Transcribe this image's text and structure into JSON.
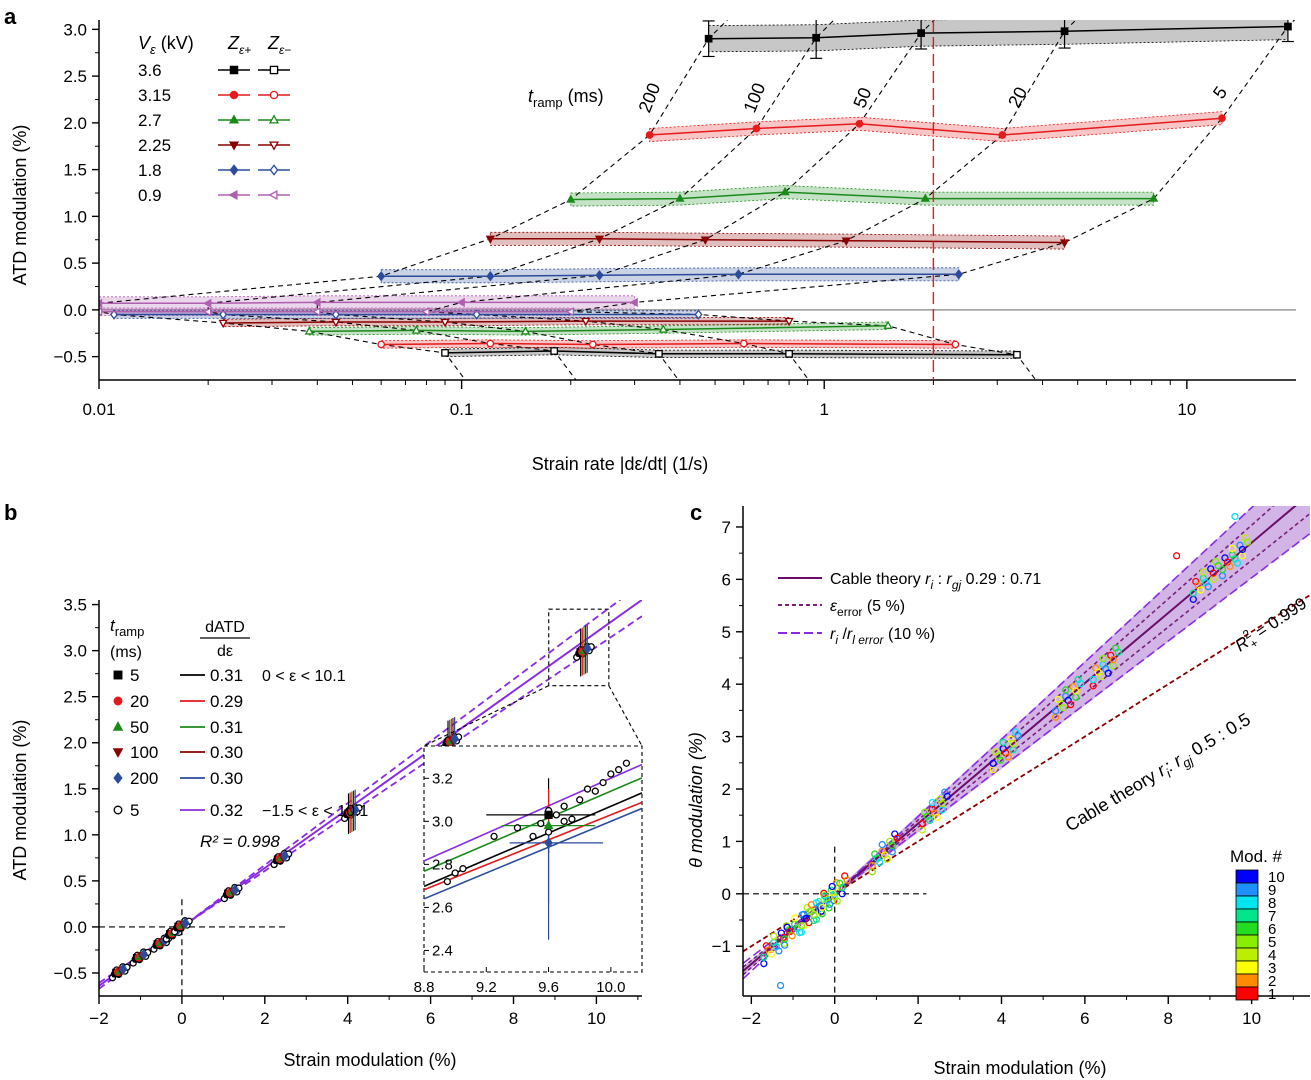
{
  "panels": {
    "a": "a",
    "b": "b",
    "c": "c"
  },
  "chart_data": [
    {
      "panel": "a",
      "type": "line",
      "xscale": "log",
      "xlim": [
        0.01,
        20
      ],
      "ylim": [
        -0.75,
        3.1
      ],
      "xlabel": "Strain rate |dε/dt| (1/s)",
      "ylabel": "ATD modulation (%)",
      "xticks": [
        "0.01",
        "0.1",
        "1",
        "10"
      ],
      "yticks": [
        "−0.5",
        "0.0",
        "0.5",
        "1.0",
        "1.5",
        "2.0",
        "2.5",
        "3.0"
      ],
      "legend": {
        "col_headers": [
          "V",
          "ε",
          " (kV)",
          "Z",
          "ε+",
          "Z",
          "ε−"
        ],
        "entries": [
          "3.6",
          "3.15",
          "2.7",
          "2.25",
          "1.8",
          "0.9"
        ]
      },
      "ramp_label": [
        "t",
        "ramp",
        " (ms)"
      ],
      "ramp_lines": [
        "200",
        "100",
        "50",
        "20",
        "5"
      ],
      "dashed_vline_x": 2.0,
      "series": [
        {
          "voltage": "3.6",
          "color": "#000000",
          "marker": "square",
          "pos_x": [
            0.48,
            0.95,
            1.85,
            4.6,
            19
          ],
          "pos_y": [
            2.9,
            2.91,
            2.96,
            2.98,
            3.03
          ],
          "pos_err": [
            0.19,
            0.22,
            0.17,
            0.18,
            0.16
          ],
          "neg_x": [
            0.09,
            0.18,
            0.35,
            0.8,
            3.4
          ],
          "neg_y": [
            -0.46,
            -0.44,
            -0.47,
            -0.47,
            -0.48
          ]
        },
        {
          "voltage": "3.15",
          "color": "#e41a1c",
          "marker": "circle",
          "pos_x": [
            0.33,
            0.65,
            1.25,
            3.1,
            12.5
          ],
          "pos_y": [
            1.87,
            1.94,
            1.99,
            1.87,
            2.05
          ],
          "neg_x": [
            0.06,
            0.12,
            0.23,
            0.6,
            2.3
          ],
          "neg_y": [
            -0.37,
            -0.36,
            -0.37,
            -0.36,
            -0.37
          ]
        },
        {
          "voltage": "2.7",
          "color": "#1a8a1a",
          "marker": "triangle-up",
          "pos_x": [
            0.2,
            0.4,
            0.78,
            1.9,
            8.1
          ],
          "pos_y": [
            1.18,
            1.19,
            1.26,
            1.19,
            1.19
          ],
          "neg_x": [
            0.038,
            0.075,
            0.15,
            0.36,
            1.5
          ],
          "neg_y": [
            -0.23,
            -0.22,
            -0.23,
            -0.21,
            -0.17
          ]
        },
        {
          "voltage": "2.25",
          "color": "#8b0000",
          "marker": "triangle-down",
          "pos_x": [
            0.12,
            0.24,
            0.47,
            1.15,
            4.6
          ],
          "pos_y": [
            0.76,
            0.76,
            0.75,
            0.74,
            0.72
          ],
          "neg_x": [
            0.022,
            0.045,
            0.09,
            0.22,
            0.8
          ],
          "neg_y": [
            -0.14,
            -0.13,
            -0.13,
            -0.12,
            -0.12
          ]
        },
        {
          "voltage": "1.8",
          "color": "#2b4c9b",
          "marker": "diamond",
          "pos_x": [
            0.06,
            0.12,
            0.24,
            0.58,
            2.35
          ],
          "pos_y": [
            0.36,
            0.36,
            0.37,
            0.38,
            0.38
          ],
          "neg_x": [
            0.011,
            0.022,
            0.045,
            0.11,
            0.45
          ],
          "neg_y": [
            -0.05,
            -0.05,
            -0.05,
            -0.05,
            -0.05
          ]
        },
        {
          "voltage": "0.9",
          "color": "#b05eb0",
          "marker": "triangle-left",
          "pos_x": [
            0.01,
            0.02,
            0.04,
            0.1,
            0.3
          ],
          "pos_y": [
            0.07,
            0.07,
            0.08,
            0.08,
            0.08
          ],
          "neg_x": [
            0.01,
            0.02,
            0.04,
            0.08,
            0.2
          ],
          "neg_y": [
            -0.02,
            -0.02,
            -0.02,
            -0.02,
            -0.02
          ]
        }
      ]
    },
    {
      "panel": "b",
      "type": "scatter",
      "xlim": [
        -2,
        11.1
      ],
      "ylim": [
        -0.75,
        3.55
      ],
      "xlabel": "Strain modulation (%)",
      "ylabel": "ATD modulation (%)",
      "xticks": [
        "−2",
        "0",
        "2",
        "4",
        "6",
        "8",
        "10"
      ],
      "yticks": [
        "−0.5",
        "0.0",
        "0.5",
        "1.0",
        "1.5",
        "2.0",
        "2.5",
        "3.0",
        "3.5"
      ],
      "legend_header_left": [
        "t",
        "ramp",
        "(ms)"
      ],
      "legend_header_right": [
        "dATD",
        "dε"
      ],
      "legend": [
        {
          "label": "5",
          "color": "#000000",
          "marker": "square",
          "slope": "0.31",
          "range": "0 < ε < 10.1"
        },
        {
          "label": "20",
          "color": "#e41a1c",
          "marker": "circle",
          "slope": "0.29",
          "range": ""
        },
        {
          "label": "50",
          "color": "#1a8a1a",
          "marker": "triangle-up",
          "slope": "0.31",
          "range": ""
        },
        {
          "label": "100",
          "color": "#8b0000",
          "marker": "triangle-down",
          "slope": "0.30",
          "range": ""
        },
        {
          "label": "200",
          "color": "#2b4c9b",
          "marker": "diamond",
          "slope": "0.30",
          "range": ""
        },
        {
          "label": "5",
          "color": "#000000",
          "marker": "open-circle",
          "slope": "0.32",
          "range": "−1.5 < ε < 10.1",
          "line_color": "#8a2be2"
        }
      ],
      "r2": "R² = 0.998",
      "fit": {
        "slope": 0.32,
        "intercept": 0.0
      },
      "clusters_x": [
        -1.5,
        -1.0,
        -0.5,
        -0.2,
        0.0,
        1.2,
        2.4,
        4.1,
        6.5,
        9.7
      ],
      "clusters_y": [
        -0.48,
        -0.32,
        -0.17,
        -0.06,
        0.02,
        0.38,
        0.75,
        1.25,
        2.02,
        3.0
      ],
      "inset": {
        "xlim": [
          8.8,
          10.2
        ],
        "ylim": [
          2.3,
          3.35
        ],
        "xticks": [
          "8.8",
          "9.2",
          "9.6",
          "10.0"
        ],
        "yticks": [
          "2.4",
          "2.6",
          "2.8",
          "3.0",
          "3.2"
        ],
        "points_x": [
          8.95,
          9.0,
          9.05,
          9.25,
          9.4,
          9.5,
          9.55,
          9.65,
          9.7,
          9.75,
          9.8,
          9.85,
          9.9,
          9.95,
          10.0,
          10.05,
          10.1,
          9.6,
          9.6,
          9.7
        ],
        "points_y": [
          2.72,
          2.76,
          2.78,
          2.93,
          2.97,
          2.93,
          2.99,
          3.03,
          3.07,
          3.01,
          3.1,
          3.15,
          3.14,
          3.18,
          3.22,
          3.24,
          3.27,
          3.05,
          2.95,
          3.0
        ]
      }
    },
    {
      "panel": "c",
      "type": "scatter",
      "xlim": [
        -2.2,
        11.4
      ],
      "ylim": [
        -1.95,
        7.4
      ],
      "xlabel": "Strain modulation (%)",
      "ylabel": "θ modulation (%)",
      "xticks": [
        "−2",
        "0",
        "2",
        "4",
        "6",
        "8",
        "10"
      ],
      "yticks": [
        "−1",
        "0",
        "1",
        "2",
        "3",
        "4",
        "5",
        "6",
        "7"
      ],
      "legend": [
        {
          "parts": [
            "Cable theory ",
            "r",
            "i",
            " : ",
            "r",
            "gj",
            "  0.29 : 0.71"
          ],
          "style": "solid"
        },
        {
          "parts": [
            "ε",
            "error",
            " (5 %)"
          ],
          "style": "dashed-dark"
        },
        {
          "parts": [
            "r",
            "i",
            " /",
            "r",
            "l error",
            " (10 %)"
          ],
          "style": "dashed-light"
        }
      ],
      "r2_label": [
        "R",
        "2",
        "+",
        " = 0.999"
      ],
      "cable_label": [
        "Cable theory ",
        "r",
        "i",
        ": ",
        "r",
        "gj",
        "  0.5 : 0.5"
      ],
      "fit_slope": 0.67,
      "cable_slope": 0.5,
      "colorbar_title": "Mod. #",
      "colorbar": [
        {
          "label": "10",
          "color": "#0000ff"
        },
        {
          "label": "9",
          "color": "#1e90ff"
        },
        {
          "label": "8",
          "color": "#00e5ee"
        },
        {
          "label": "7",
          "color": "#00e58a"
        },
        {
          "label": "6",
          "color": "#22dd22"
        },
        {
          "label": "5",
          "color": "#88ee00"
        },
        {
          "label": "4",
          "color": "#bbee00"
        },
        {
          "label": "3",
          "color": "#ffff00"
        },
        {
          "label": "2",
          "color": "#ff8c00"
        },
        {
          "label": "1",
          "color": "#ff0000"
        }
      ],
      "clusters_x": [
        -1.4,
        -0.9,
        -0.5,
        -0.2,
        0.0,
        1.2,
        2.4,
        4.1,
        5.6,
        6.5,
        8.9,
        9.6
      ],
      "clusters_y": [
        -0.95,
        -0.6,
        -0.35,
        -0.13,
        0.0,
        0.8,
        1.6,
        2.75,
        3.75,
        4.35,
        6.0,
        6.45
      ]
    }
  ]
}
